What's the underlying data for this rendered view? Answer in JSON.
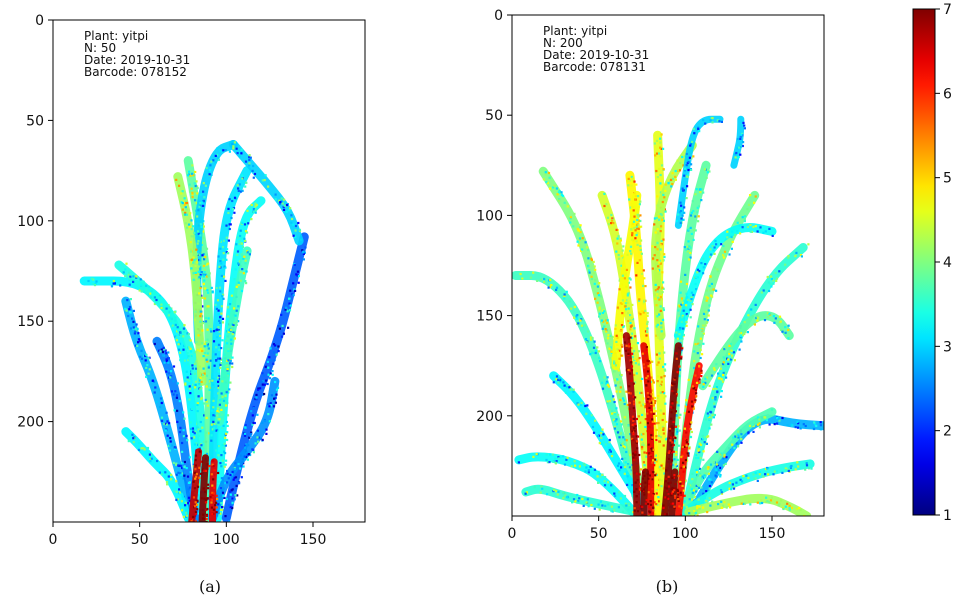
{
  "chart_data": [
    {
      "type": "heatmap",
      "panel_label": "(a)",
      "annotation": [
        "Plant: yitpi",
        "N: 50",
        "Date: 2019-10-31",
        "Barcode: 078152"
      ],
      "xlim": [
        0,
        180
      ],
      "ylim": [
        250,
        0
      ],
      "x_ticks": [
        0,
        50,
        100,
        150
      ],
      "y_ticks": [
        0,
        50,
        100,
        150,
        200
      ],
      "colorscale": "jet",
      "leaves": [
        {
          "points": [
            [
              85,
              248
            ],
            [
              82,
              200
            ],
            [
              72,
              150
            ],
            [
              52,
              130
            ],
            [
              18,
              130
            ]
          ],
          "level": 3.2
        },
        {
          "points": [
            [
              88,
              248
            ],
            [
              86,
              200
            ],
            [
              80,
              160
            ],
            [
              62,
              140
            ],
            [
              38,
              122
            ]
          ],
          "level": 3.4
        },
        {
          "points": [
            [
              90,
              248
            ],
            [
              90,
              195
            ],
            [
              90,
              140
            ],
            [
              86,
              110
            ],
            [
              78,
              70
            ]
          ],
          "level": 3.8
        },
        {
          "points": [
            [
              92,
              248
            ],
            [
              93,
              190
            ],
            [
              96,
              130
            ],
            [
              100,
              95
            ],
            [
              112,
              75
            ]
          ],
          "level": 3.1
        },
        {
          "points": [
            [
              95,
              248
            ],
            [
              98,
              190
            ],
            [
              104,
              130
            ],
            [
              110,
              98
            ],
            [
              120,
              90
            ]
          ],
          "level": 3.3
        },
        {
          "points": [
            [
              100,
              248
            ],
            [
              112,
              200
            ],
            [
              130,
              160
            ],
            [
              140,
              125
            ],
            [
              145,
              108
            ]
          ],
          "level": 2.3
        },
        {
          "points": [
            [
              84,
              160
            ],
            [
              82,
              120
            ],
            [
              86,
              85
            ],
            [
              94,
              65
            ],
            [
              104,
              62
            ]
          ],
          "level": 3.0
        },
        {
          "points": [
            [
              104,
              62
            ],
            [
              114,
              72
            ],
            [
              124,
              82
            ],
            [
              136,
              95
            ],
            [
              142,
              110
            ]
          ],
          "level": 3.0
        },
        {
          "points": [
            [
              80,
              248
            ],
            [
              68,
              210
            ],
            [
              58,
              180
            ],
            [
              48,
              160
            ],
            [
              42,
              140
            ]
          ],
          "level": 2.8
        },
        {
          "points": [
            [
              78,
              248
            ],
            [
              70,
              230
            ],
            [
              58,
              220
            ],
            [
              48,
              210
            ],
            [
              42,
              205
            ]
          ],
          "level": 3.2
        },
        {
          "points": [
            [
              92,
              248
            ],
            [
              98,
              230
            ],
            [
              112,
              215
            ],
            [
              124,
              200
            ],
            [
              128,
              180
            ]
          ],
          "level": 2.6
        },
        {
          "points": [
            [
              86,
              180
            ],
            [
              84,
              150
            ],
            [
              82,
              125
            ],
            [
              78,
              100
            ],
            [
              72,
              78
            ]
          ],
          "level": 4.2
        },
        {
          "points": [
            [
              96,
              200
            ],
            [
              100,
              170
            ],
            [
              104,
              150
            ],
            [
              108,
              130
            ],
            [
              112,
              115
            ]
          ],
          "level": 3.6
        },
        {
          "points": [
            [
              82,
              248
            ],
            [
              78,
              230
            ],
            [
              74,
              200
            ],
            [
              68,
              175
            ],
            [
              60,
              160
            ]
          ],
          "level": 2.5
        }
      ],
      "core": [
        {
          "points": [
            [
              80,
              250
            ],
            [
              82,
              232
            ],
            [
              84,
              215
            ]
          ],
          "level": 6.6
        },
        {
          "points": [
            [
              86,
              250
            ],
            [
              87,
              232
            ],
            [
              88,
              218
            ]
          ],
          "level": 7.0
        },
        {
          "points": [
            [
              92,
              250
            ],
            [
              92,
              235
            ],
            [
              93,
              220
            ]
          ],
          "level": 6.4
        }
      ]
    },
    {
      "type": "heatmap",
      "panel_label": "(b)",
      "annotation": [
        "Plant: yitpi",
        "N: 200",
        "Date: 2019-10-31",
        "Barcode: 078131"
      ],
      "xlim": [
        0,
        180
      ],
      "ylim": [
        250,
        0
      ],
      "x_ticks": [
        0,
        50,
        100,
        150
      ],
      "y_ticks": [
        0,
        50,
        100,
        150,
        200
      ],
      "colorscale": "jet",
      "leaves": [
        {
          "points": [
            [
              74,
              248
            ],
            [
              60,
              200
            ],
            [
              40,
              150
            ],
            [
              20,
              130
            ],
            [
              2,
              130
            ]
          ],
          "level": 3.6
        },
        {
          "points": [
            [
              76,
              248
            ],
            [
              66,
              200
            ],
            [
              50,
              140
            ],
            [
              38,
              105
            ],
            [
              18,
              78
            ]
          ],
          "level": 4.0
        },
        {
          "points": [
            [
              80,
              248
            ],
            [
              74,
              190
            ],
            [
              66,
              140
            ],
            [
              60,
              110
            ],
            [
              52,
              90
            ]
          ],
          "level": 4.5
        },
        {
          "points": [
            [
              84,
              248
            ],
            [
              80,
              190
            ],
            [
              74,
              140
            ],
            [
              72,
              110
            ],
            [
              68,
              80
            ]
          ],
          "level": 4.8
        },
        {
          "points": [
            [
              88,
              248
            ],
            [
              86,
              190
            ],
            [
              84,
              140
            ],
            [
              86,
              100
            ],
            [
              84,
              60
            ]
          ],
          "level": 4.6
        },
        {
          "points": [
            [
              92,
              248
            ],
            [
              94,
              190
            ],
            [
              98,
              140
            ],
            [
              104,
              100
            ],
            [
              112,
              75
            ]
          ],
          "level": 3.8
        },
        {
          "points": [
            [
              96,
              248
            ],
            [
              102,
              190
            ],
            [
              112,
              140
            ],
            [
              126,
              110
            ],
            [
              140,
              90
            ]
          ],
          "level": 3.9
        },
        {
          "points": [
            [
              100,
              248
            ],
            [
              112,
              200
            ],
            [
              130,
              160
            ],
            [
              150,
              130
            ],
            [
              168,
              116
            ]
          ],
          "level": 3.5
        },
        {
          "points": [
            [
              104,
              248
            ],
            [
              122,
              220
            ],
            [
              142,
              200
            ],
            [
              162,
              204
            ],
            [
              180,
              205
            ]
          ],
          "level": 2.8
        },
        {
          "points": [
            [
              70,
              248
            ],
            [
              52,
              230
            ],
            [
              32,
              222
            ],
            [
              14,
              220
            ],
            [
              4,
              222
            ]
          ],
          "level": 3.3
        },
        {
          "points": [
            [
              72,
              248
            ],
            [
              50,
              244
            ],
            [
              30,
              240
            ],
            [
              16,
              236
            ],
            [
              8,
              238
            ]
          ],
          "level": 3.5
        },
        {
          "points": [
            [
              78,
              248
            ],
            [
              62,
              225
            ],
            [
              48,
              205
            ],
            [
              36,
              190
            ],
            [
              24,
              180
            ]
          ],
          "level": 3.2
        },
        {
          "points": [
            [
              98,
              248
            ],
            [
              108,
              230
            ],
            [
              124,
              215
            ],
            [
              136,
              204
            ],
            [
              150,
              198
            ]
          ],
          "level": 3.7
        },
        {
          "points": [
            [
              100,
              248
            ],
            [
              116,
              238
            ],
            [
              138,
              230
            ],
            [
              156,
              226
            ],
            [
              172,
              224
            ]
          ],
          "level": 3.4
        },
        {
          "points": [
            [
              102,
              248
            ],
            [
              120,
              244
            ],
            [
              146,
              240
            ],
            [
              162,
              246
            ],
            [
              170,
              250
            ]
          ],
          "level": 4.2
        },
        {
          "points": [
            [
              86,
              160
            ],
            [
              82,
              125
            ],
            [
              84,
              100
            ],
            [
              92,
              80
            ],
            [
              104,
              65
            ]
          ],
          "level": 4.3
        },
        {
          "points": [
            [
              110,
              185
            ],
            [
              124,
              165
            ],
            [
              140,
              150
            ],
            [
              152,
              150
            ],
            [
              160,
              160
            ]
          ],
          "level": 3.8
        },
        {
          "points": [
            [
              96,
              160
            ],
            [
              106,
              130
            ],
            [
              118,
              112
            ],
            [
              134,
              105
            ],
            [
              150,
              108
            ]
          ],
          "level": 3.3
        },
        {
          "points": [
            [
              60,
              175
            ],
            [
              62,
              150
            ],
            [
              66,
              125
            ],
            [
              70,
              105
            ],
            [
              72,
              90
            ]
          ],
          "level": 4.7
        }
      ],
      "core": [
        {
          "points": [
            [
              72,
              250
            ],
            [
              72,
              232
            ],
            [
              70,
              205
            ],
            [
              68,
              180
            ],
            [
              66,
              160
            ]
          ],
          "level": 6.8
        },
        {
          "points": [
            [
              80,
              250
            ],
            [
              80,
              230
            ],
            [
              80,
              205
            ],
            [
              78,
              180
            ],
            [
              76,
              165
            ]
          ],
          "level": 6.4
        },
        {
          "points": [
            [
              88,
              250
            ],
            [
              90,
              232
            ],
            [
              92,
              205
            ],
            [
              94,
              180
            ],
            [
              96,
              165
            ]
          ],
          "level": 7.0
        },
        {
          "points": [
            [
              96,
              250
            ],
            [
              98,
              232
            ],
            [
              100,
              210
            ],
            [
              104,
              190
            ],
            [
              108,
              175
            ]
          ],
          "level": 6.2
        },
        {
          "points": [
            [
              76,
              250
            ],
            [
              76,
              240
            ],
            [
              77,
              228
            ]
          ],
          "level": 7.0
        },
        {
          "points": [
            [
              92,
              250
            ],
            [
              93,
              240
            ],
            [
              94,
              228
            ]
          ],
          "level": 7.0
        }
      ],
      "upper": [
        {
          "points": [
            [
              96,
              105
            ],
            [
              100,
              80
            ],
            [
              104,
              60
            ],
            [
              110,
              52
            ],
            [
              120,
              52
            ]
          ],
          "level": 3.0
        },
        {
          "points": [
            [
              132,
              52
            ],
            [
              132,
              60
            ],
            [
              130,
              68
            ],
            [
              128,
              75
            ]
          ],
          "level": 3.0
        }
      ]
    }
  ],
  "colorbar": {
    "range": [
      1,
      7
    ],
    "ticks": [
      1,
      2,
      3,
      4,
      5,
      6,
      7
    ],
    "colorscale": "jet"
  }
}
